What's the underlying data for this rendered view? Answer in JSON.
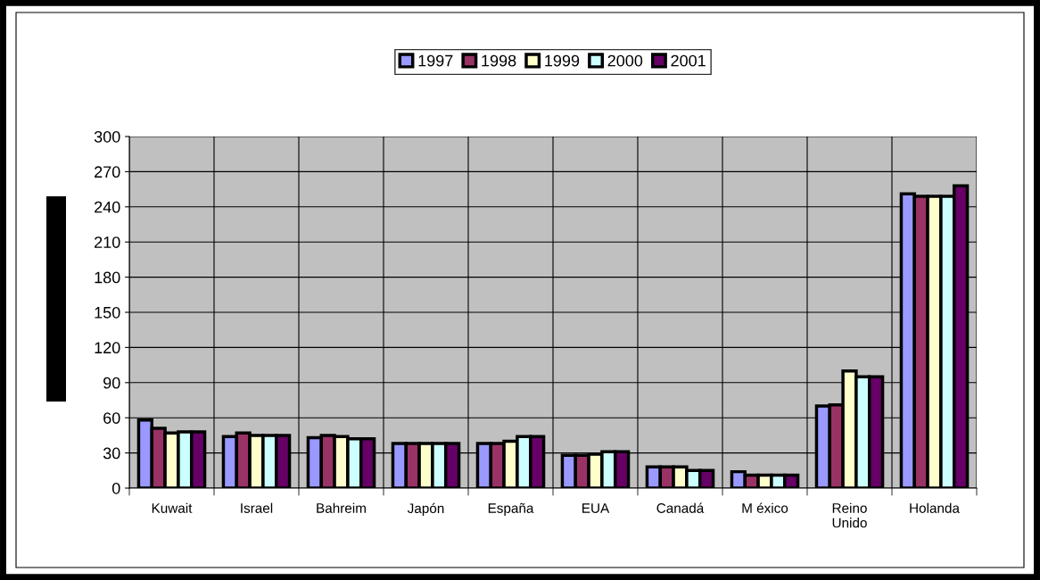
{
  "chart_data": {
    "type": "bar",
    "categories": [
      "Kuwait",
      "Israel",
      "Bahreim",
      "Japón",
      "España",
      "EUA",
      "Canadá",
      "M éxico",
      "Reino\nUnido",
      "Holanda"
    ],
    "series": [
      {
        "name": "1997",
        "color": "#9999ff",
        "values": [
          58,
          44,
          43,
          38,
          38,
          28,
          18,
          14,
          70,
          251
        ]
      },
      {
        "name": "1998",
        "color": "#993366",
        "values": [
          51,
          47,
          45,
          38,
          38,
          28,
          18,
          11,
          71,
          249
        ]
      },
      {
        "name": "1999",
        "color": "#ffffcc",
        "values": [
          47,
          45,
          44,
          38,
          40,
          29,
          18,
          11,
          100,
          249
        ]
      },
      {
        "name": "2000",
        "color": "#ccffff",
        "values": [
          48,
          45,
          42,
          38,
          44,
          31,
          15,
          11,
          95,
          249
        ]
      },
      {
        "name": "2001",
        "color": "#660066",
        "values": [
          48,
          45,
          42,
          38,
          44,
          31,
          15,
          11,
          95,
          258
        ]
      }
    ],
    "ylim": [
      0,
      300
    ],
    "yticks": [
      0,
      30,
      60,
      90,
      120,
      150,
      180,
      210,
      240,
      270,
      300
    ],
    "grid": true,
    "legend": "top"
  }
}
